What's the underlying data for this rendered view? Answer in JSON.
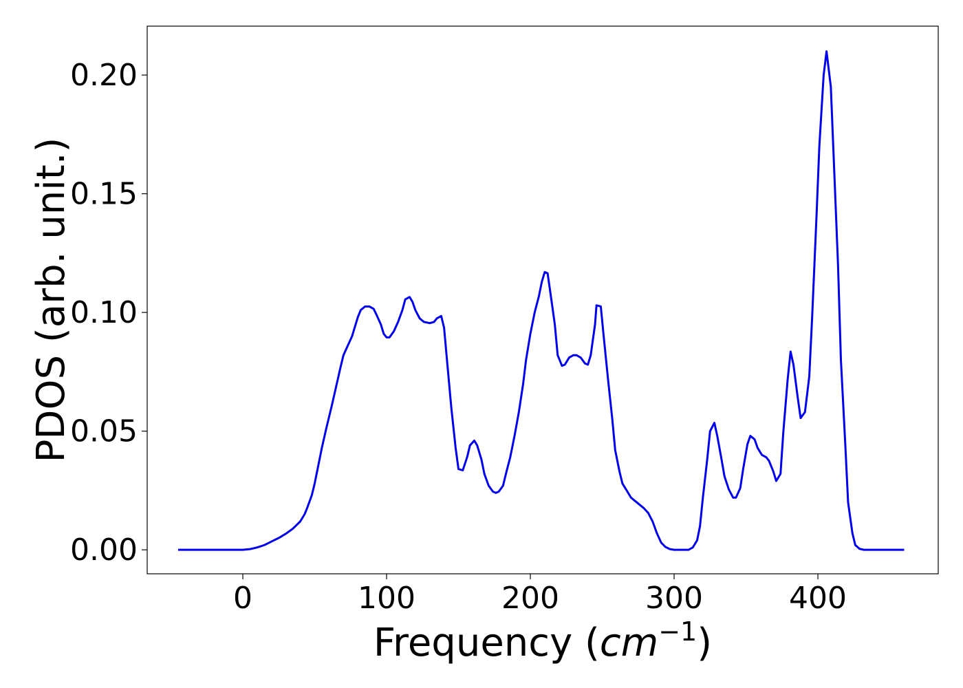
{
  "chart_data": {
    "type": "line",
    "xlabel_parts": [
      "Frequency (",
      "cm",
      "−1",
      ")"
    ],
    "ylabel": "PDOS (arb. unit.)",
    "xlim": [
      -66.5,
      483.7
    ],
    "ylim": [
      -0.0101,
      0.2206
    ],
    "xticks": [
      0,
      100,
      200,
      300,
      400
    ],
    "yticks": [
      {
        "value": 0,
        "label": "0.00"
      },
      {
        "value": 0.05,
        "label": "0.05"
      },
      {
        "value": 0.1,
        "label": "0.10"
      },
      {
        "value": 0.15,
        "label": "0.15"
      },
      {
        "value": 0.2,
        "label": "0.20"
      }
    ],
    "grid": false,
    "x": [
      -45,
      0,
      5,
      10,
      15,
      20,
      25,
      30,
      35,
      40,
      43,
      45,
      48,
      50,
      53,
      55,
      58,
      62,
      65,
      68,
      70,
      73,
      76,
      78,
      80,
      82,
      85,
      88,
      91,
      93,
      96,
      98,
      100,
      102,
      105,
      108,
      111,
      113,
      116,
      118,
      120,
      123,
      126,
      130,
      133,
      135,
      138,
      140,
      142,
      145,
      148,
      150,
      153,
      156,
      158,
      161,
      163,
      166,
      168,
      171,
      174,
      176,
      178,
      181,
      183,
      186,
      189,
      192,
      195,
      197,
      200,
      203,
      206,
      208,
      210,
      212,
      214,
      217,
      219,
      222,
      224,
      227,
      230,
      232,
      235,
      238,
      240,
      242,
      245,
      246,
      249,
      251,
      254,
      257,
      259,
      262,
      264,
      267,
      270,
      273,
      276,
      279,
      282,
      285,
      288,
      291,
      294,
      297,
      300,
      305,
      310,
      313,
      316,
      318,
      320,
      323,
      325,
      328,
      330,
      333,
      335,
      338,
      341,
      343,
      346,
      348,
      351,
      353,
      356,
      358,
      361,
      364,
      366,
      369,
      371,
      374,
      376,
      379,
      381,
      383,
      386,
      388,
      391,
      394,
      396,
      399,
      401,
      404,
      406,
      409,
      411,
      414,
      416,
      419,
      421,
      424,
      426,
      429,
      432,
      460
    ],
    "series": [
      {
        "name": "PDOS",
        "color": "#0000ee",
        "values": [
          0,
          0,
          0.0003,
          0.001,
          0.002,
          0.0035,
          0.005,
          0.0068,
          0.009,
          0.012,
          0.015,
          0.018,
          0.023,
          0.028,
          0.037,
          0.043,
          0.051,
          0.061,
          0.069,
          0.077,
          0.082,
          0.086,
          0.09,
          0.094,
          0.098,
          0.101,
          0.1025,
          0.1025,
          0.1015,
          0.099,
          0.095,
          0.091,
          0.0895,
          0.0895,
          0.092,
          0.096,
          0.101,
          0.1055,
          0.1065,
          0.1045,
          0.101,
          0.0975,
          0.096,
          0.0955,
          0.096,
          0.0975,
          0.0985,
          0.0935,
          0.08,
          0.06,
          0.043,
          0.034,
          0.0335,
          0.039,
          0.044,
          0.046,
          0.044,
          0.038,
          0.032,
          0.027,
          0.0245,
          0.024,
          0.0245,
          0.027,
          0.032,
          0.039,
          0.048,
          0.058,
          0.07,
          0.08,
          0.091,
          0.1,
          0.107,
          0.113,
          0.117,
          0.1165,
          0.108,
          0.095,
          0.082,
          0.0775,
          0.078,
          0.081,
          0.082,
          0.082,
          0.081,
          0.0785,
          0.078,
          0.082,
          0.095,
          0.103,
          0.1025,
          0.09,
          0.072,
          0.055,
          0.042,
          0.033,
          0.028,
          0.025,
          0.022,
          0.0205,
          0.019,
          0.0175,
          0.0155,
          0.012,
          0.007,
          0.003,
          0.0012,
          0.0003,
          0,
          0,
          0,
          0.001,
          0.004,
          0.01,
          0.022,
          0.038,
          0.05,
          0.0535,
          0.048,
          0.038,
          0.031,
          0.0255,
          0.022,
          0.022,
          0.026,
          0.034,
          0.0445,
          0.048,
          0.0465,
          0.043,
          0.04,
          0.039,
          0.0375,
          0.033,
          0.029,
          0.032,
          0.05,
          0.072,
          0.0835,
          0.078,
          0.064,
          0.0555,
          0.058,
          0.073,
          0.098,
          0.14,
          0.17,
          0.2,
          0.21,
          0.195,
          0.165,
          0.12,
          0.08,
          0.045,
          0.02,
          0.007,
          0.002,
          0.0004,
          0,
          0
        ]
      }
    ]
  }
}
